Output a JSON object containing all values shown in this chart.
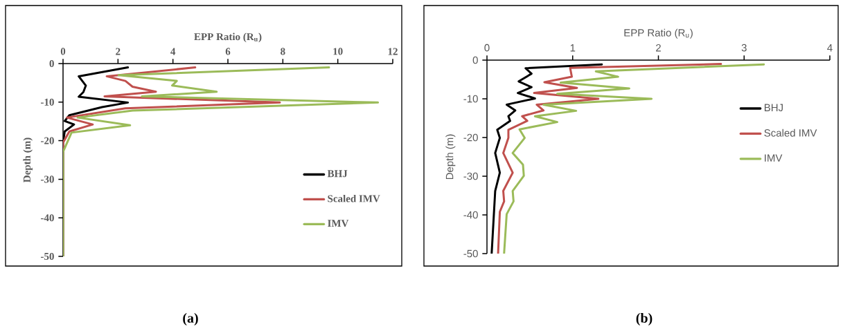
{
  "chart_data": [
    {
      "type": "line",
      "xlabel": "EPP Ratio (R$_{u}$)",
      "ylabel": "Depth (m)",
      "annotations": [
        "(a)"
      ],
      "xlim": [
        0,
        12
      ],
      "xticks": [
        0,
        2,
        4,
        6,
        8,
        10,
        12
      ],
      "ylim": [
        -50,
        0
      ],
      "yticks": [
        0,
        -10,
        -20,
        -30,
        -40,
        -50
      ],
      "legend": "bottom right",
      "series": [
        {
          "name": "BHJ",
          "color": "#000000",
          "x": [
            2.36,
            0.57,
            0.83,
            0.74,
            0.57,
            2.36,
            1.42,
            0.23,
            0.06,
            0.4,
            0.06,
            0,
            0
          ],
          "values": [
            -1.0,
            -3.3,
            -5.7,
            -7.4,
            -8.6,
            -10.1,
            -11.3,
            -13.4,
            -14.9,
            -15.8,
            -17.6,
            -20.5,
            -50
          ]
        },
        {
          "name": "Scaled IMV",
          "color": "#c0504d",
          "x": [
            4.81,
            1.59,
            2.27,
            2.53,
            3.38,
            1.51,
            7.89,
            2.27,
            0.14,
            1.08,
            0.23,
            0,
            0
          ],
          "values": [
            -1.0,
            -3.3,
            -4.5,
            -6.0,
            -7.3,
            -8.5,
            -10.1,
            -11.6,
            -14.0,
            -15.8,
            -17.6,
            -20.5,
            -50
          ]
        },
        {
          "name": "IMV",
          "color": "#9bbb59",
          "x": [
            9.68,
            2.02,
            4.14,
            3.97,
            5.59,
            2.87,
            11.46,
            2.53,
            0.53,
            2.44,
            0.31,
            0,
            0
          ],
          "values": [
            -1.0,
            -3.0,
            -4.5,
            -5.7,
            -7.3,
            -8.5,
            -10.1,
            -12.2,
            -14.0,
            -16.0,
            -17.9,
            -22.9,
            -50
          ]
        }
      ]
    },
    {
      "type": "line",
      "xlabel": "EPP Ratio (R$_{u}$)",
      "ylabel": "Depth (m)",
      "annotations": [
        "(b)"
      ],
      "xlim": [
        0,
        4
      ],
      "xticks": [
        0,
        1,
        2,
        3,
        4
      ],
      "ylim": [
        -50,
        0
      ],
      "yticks": [
        0,
        -10,
        -20,
        -30,
        -40,
        -50
      ],
      "legend": "right",
      "series": [
        {
          "name": "BHJ",
          "color": "#000000",
          "x": [
            1.34,
            0.45,
            0.52,
            0.37,
            0.52,
            0.36,
            0.56,
            0.23,
            0.33,
            0.25,
            0.27,
            0.12,
            0.15,
            0.096,
            0.15,
            0.096,
            0.055
          ],
          "values": [
            -1.1,
            -2.1,
            -3.5,
            -5.5,
            -7.0,
            -8.5,
            -9.9,
            -11.5,
            -13.0,
            -14.5,
            -15.7,
            -18.0,
            -20.1,
            -24.0,
            -29.1,
            -33.8,
            -49.9
          ]
        },
        {
          "name": "Scaled IMV",
          "color": "#c0504d",
          "x": [
            2.73,
            0.97,
            0.99,
            0.67,
            1.05,
            0.55,
            1.3,
            0.58,
            0.66,
            0.41,
            0.47,
            0.25,
            0.25,
            0.19,
            0.3,
            0.19,
            0.2,
            0.15,
            0.13
          ],
          "values": [
            -1.0,
            -2.0,
            -4.3,
            -5.7,
            -7.2,
            -8.5,
            -10.0,
            -11.5,
            -13.0,
            -14.5,
            -15.7,
            -18.0,
            -20.1,
            -24.0,
            -29.1,
            -33.8,
            -36.5,
            -39.2,
            -49.9
          ]
        },
        {
          "name": "IMV",
          "color": "#9bbb59",
          "x": [
            3.23,
            1.27,
            1.53,
            0.86,
            1.66,
            0.82,
            1.92,
            0.66,
            1.04,
            0.56,
            0.82,
            0.38,
            0.44,
            0.3,
            0.42,
            0.43,
            0.3,
            0.31,
            0.23,
            0.2
          ],
          "values": [
            -1.1,
            -2.9,
            -4.3,
            -5.8,
            -7.3,
            -8.7,
            -10.0,
            -11.5,
            -13.1,
            -14.5,
            -16.0,
            -17.9,
            -20.1,
            -24.0,
            -27.0,
            -29.9,
            -33.8,
            -36.5,
            -39.8,
            -49.9
          ]
        }
      ]
    }
  ]
}
